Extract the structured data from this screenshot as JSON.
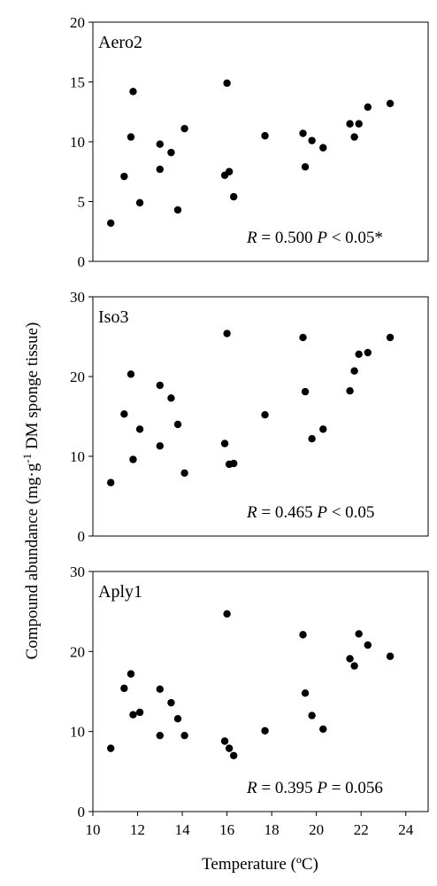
{
  "figure": {
    "ylabel": "Compound abundance (mg·g",
    "ylabel_sup": "-1",
    "ylabel_rest": " DM sponge tissue)",
    "xlabel": "Temperature (ºC)"
  },
  "chart_data": [
    {
      "type": "scatter",
      "label": "Aero2",
      "stat_r": "= 0.500",
      "stat_p": "< 0.05*",
      "xlim": [
        10,
        25
      ],
      "ylim": [
        0,
        20
      ],
      "yticks": [
        0,
        5,
        10,
        15,
        20
      ],
      "x": [
        10.8,
        11.4,
        11.7,
        11.8,
        12.1,
        13.0,
        13.0,
        13.5,
        13.8,
        14.1,
        15.9,
        16.0,
        16.1,
        16.3,
        17.7,
        19.4,
        19.5,
        19.8,
        20.3,
        21.5,
        21.7,
        21.9,
        22.3,
        23.3
      ],
      "y": [
        3.2,
        7.1,
        10.4,
        14.2,
        4.9,
        7.7,
        9.8,
        9.1,
        4.3,
        11.1,
        7.2,
        14.9,
        7.5,
        5.4,
        10.5,
        10.7,
        7.9,
        10.1,
        9.5,
        11.5,
        10.4,
        11.5,
        12.9,
        13.2
      ]
    },
    {
      "type": "scatter",
      "label": "Iso3",
      "stat_r": "= 0.465",
      "stat_p": "< 0.05",
      "xlim": [
        10,
        25
      ],
      "ylim": [
        0,
        30
      ],
      "yticks": [
        0,
        10,
        20,
        30
      ],
      "x": [
        10.8,
        11.4,
        11.7,
        11.8,
        12.1,
        13.0,
        13.0,
        13.5,
        13.8,
        14.1,
        15.9,
        16.0,
        16.1,
        16.3,
        17.7,
        19.4,
        19.5,
        19.8,
        20.3,
        21.5,
        21.7,
        21.9,
        22.3,
        23.3
      ],
      "y": [
        6.7,
        15.3,
        20.3,
        9.6,
        13.4,
        11.3,
        18.9,
        17.3,
        14.0,
        7.9,
        11.6,
        25.4,
        9.0,
        9.1,
        15.2,
        24.9,
        18.1,
        12.2,
        13.4,
        18.2,
        20.7,
        22.8,
        23.0,
        24.9
      ]
    },
    {
      "type": "scatter",
      "label": "Aply1",
      "stat_r": "= 0.395",
      "stat_p": "= 0.056",
      "xlim": [
        10,
        25
      ],
      "ylim": [
        0,
        30
      ],
      "yticks": [
        0,
        10,
        20,
        30
      ],
      "xticks": [
        10,
        12,
        14,
        16,
        18,
        20,
        22,
        24
      ],
      "x": [
        10.8,
        11.4,
        11.7,
        11.8,
        12.1,
        13.0,
        13.0,
        13.5,
        13.8,
        14.1,
        15.9,
        16.1,
        16.3,
        16.0,
        17.7,
        19.4,
        19.5,
        19.8,
        20.3,
        21.5,
        21.7,
        21.9,
        22.3,
        23.3
      ],
      "y": [
        7.9,
        15.4,
        17.2,
        12.1,
        12.4,
        9.5,
        15.3,
        13.6,
        11.6,
        9.5,
        8.8,
        7.9,
        7.0,
        24.7,
        10.1,
        22.1,
        14.8,
        12.0,
        10.3,
        19.1,
        18.2,
        22.2,
        20.8,
        19.4
      ]
    }
  ]
}
